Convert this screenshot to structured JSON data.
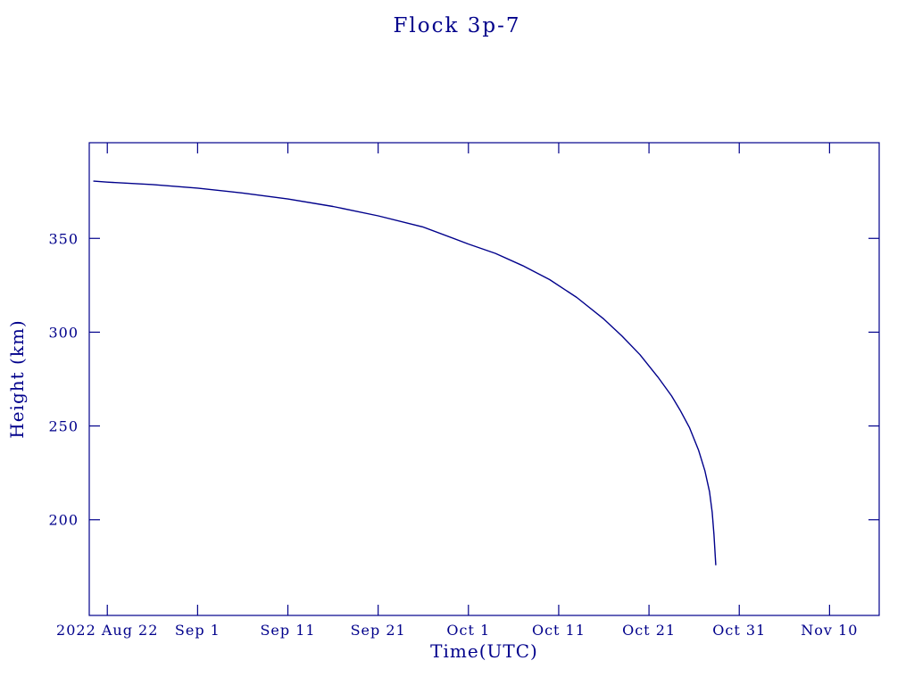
{
  "title": "Flock 3p-7",
  "x_axis_label": "Time(UTC)",
  "y_axis_label": "Height (km)",
  "colors": {
    "ink": "#00008b",
    "background": "#ffffff"
  },
  "chart_data": {
    "type": "line",
    "title": "Flock 3p-7",
    "xlabel": "Time(UTC)",
    "ylabel": "Height (km)",
    "grid": false,
    "legend": "none",
    "line_color": "#00008b",
    "x_unit": "days since 2022 Aug 22",
    "xlim_days": [
      -2,
      85.5
    ],
    "ylim": [
      149,
      401
    ],
    "x_ticks": [
      {
        "label": "2022 Aug 22",
        "day": 0
      },
      {
        "label": "Sep 1",
        "day": 10
      },
      {
        "label": "Sep 11",
        "day": 20
      },
      {
        "label": "Sep 21",
        "day": 30
      },
      {
        "label": "Oct 1",
        "day": 40
      },
      {
        "label": "Oct 11",
        "day": 50
      },
      {
        "label": "Oct 21",
        "day": 60
      },
      {
        "label": "Oct 31",
        "day": 70
      },
      {
        "label": "Nov 10",
        "day": 80
      }
    ],
    "y_ticks": [
      200,
      250,
      300,
      350
    ],
    "series": [
      {
        "name": "Flock 3p-7 height",
        "x_days": [
          -1.5,
          0,
          5,
          10,
          15,
          20,
          25,
          30,
          35,
          40,
          43,
          46,
          49,
          52,
          55,
          57,
          59,
          61,
          62.5,
          63.5,
          64.5,
          65.5,
          66.2,
          66.7,
          67,
          67.2,
          67.4
        ],
        "values": [
          380.5,
          380,
          378.7,
          376.8,
          374.2,
          371,
          367,
          362,
          356,
          347,
          342,
          335.5,
          328,
          318.5,
          307,
          298,
          288,
          276,
          266,
          258,
          249,
          237,
          226,
          215,
          204,
          192,
          176
        ]
      }
    ]
  }
}
